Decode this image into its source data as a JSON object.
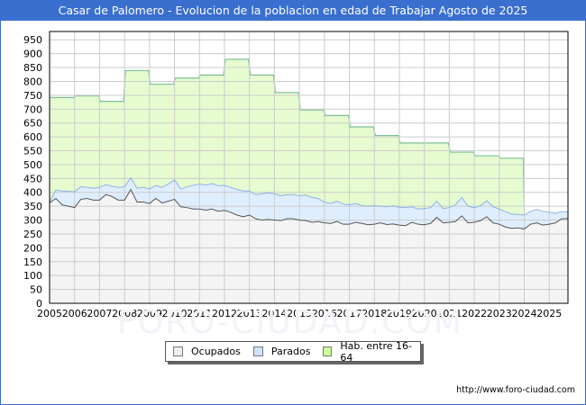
{
  "title": "Casar de Palomero - Evolucion de la poblacion en edad de Trabajar Agosto de 2025",
  "source_url": "http://www.foro-ciudad.com",
  "watermark": "FORO-CIUDAD.COM",
  "colors": {
    "title_bg": "#3a6fd0",
    "hab_fill": "#e6fbd0",
    "hab_line": "#7bbf96",
    "parados_fill": "#dfeeff",
    "parados_line": "#8fb2e6",
    "ocupados_fill": "#f4f4f4",
    "ocupados_line": "#555555",
    "grid": "#cccccc"
  },
  "legend": [
    {
      "label": "Ocupados",
      "color": "#eeeeee"
    },
    {
      "label": "Parados",
      "color": "#cce4ff"
    },
    {
      "label": "Hab. entre 16-64",
      "color": "#ccff99"
    }
  ],
  "chart_data": {
    "type": "area",
    "title": "Casar de Palomero - Evolucion de la poblacion en edad de Trabajar Agosto de 2025",
    "xlabel": "",
    "ylabel": "",
    "ylim": [
      0,
      950
    ],
    "yticks": [
      0,
      50,
      100,
      150,
      200,
      250,
      300,
      350,
      400,
      450,
      500,
      550,
      600,
      650,
      700,
      750,
      800,
      850,
      900,
      950
    ],
    "xticks": [
      "2005",
      "2006",
      "2007",
      "2008",
      "2009",
      "2010",
      "2011",
      "2012",
      "2013",
      "2014",
      "2015",
      "2016",
      "2017",
      "2018",
      "2019",
      "2020",
      "2021",
      "2022",
      "2023",
      "2024",
      "2025"
    ],
    "grid": true,
    "legend_position": "bottom",
    "series": [
      {
        "name": "Hab. entre 16-64",
        "x": [
          2005,
          2006,
          2007,
          2008,
          2009,
          2010,
          2011,
          2012,
          2013,
          2014,
          2015,
          2016,
          2017,
          2018,
          2019,
          2020,
          2021,
          2022,
          2023
        ],
        "values": [
          742,
          748,
          728,
          839,
          790,
          812,
          823,
          880,
          823,
          760,
          697,
          677,
          636,
          605,
          578,
          578,
          545,
          532,
          523
        ]
      },
      {
        "name": "Parados",
        "note": "values are Ocupados+Parados stacked top, quarterly",
        "x": [
          2005.0,
          2005.25,
          2005.5,
          2005.75,
          2006.0,
          2006.25,
          2006.5,
          2006.75,
          2007.0,
          2007.25,
          2007.5,
          2007.75,
          2008.0,
          2008.25,
          2008.5,
          2008.75,
          2009.0,
          2009.25,
          2009.5,
          2009.75,
          2010.0,
          2010.25,
          2010.5,
          2010.75,
          2011.0,
          2011.25,
          2011.5,
          2011.75,
          2012.0,
          2012.25,
          2012.5,
          2012.75,
          2013.0,
          2013.25,
          2013.5,
          2013.75,
          2014.0,
          2014.25,
          2014.5,
          2014.75,
          2015.0,
          2015.25,
          2015.5,
          2015.75,
          2016.0,
          2016.25,
          2016.5,
          2016.75,
          2017.0,
          2017.25,
          2017.5,
          2017.75,
          2018.0,
          2018.25,
          2018.5,
          2018.75,
          2019.0,
          2019.25,
          2019.5,
          2019.75,
          2020.0,
          2020.25,
          2020.5,
          2020.75,
          2021.0,
          2021.25,
          2021.5,
          2021.75,
          2022.0,
          2022.25,
          2022.5,
          2022.75,
          2023.0,
          2023.25,
          2023.5,
          2023.75,
          2024.0,
          2024.25,
          2024.5,
          2024.75,
          2025.0,
          2025.25,
          2025.5
        ],
        "values": [
          365,
          408,
          405,
          404,
          402,
          420,
          418,
          415,
          418,
          428,
          422,
          418,
          420,
          452,
          415,
          418,
          412,
          425,
          418,
          430,
          445,
          412,
          420,
          425,
          430,
          426,
          432,
          424,
          425,
          418,
          410,
          405,
          405,
          392,
          395,
          398,
          395,
          388,
          392,
          392,
          388,
          390,
          382,
          378,
          365,
          360,
          368,
          358,
          355,
          360,
          352,
          350,
          352,
          350,
          348,
          352,
          346,
          345,
          348,
          340,
          342,
          345,
          368,
          342,
          345,
          355,
          382,
          350,
          345,
          352,
          370,
          348,
          340,
          330,
          322,
          320,
          318,
          332,
          338,
          332,
          328,
          325,
          330
        ]
      },
      {
        "name": "Ocupados",
        "x": [
          2005.0,
          2005.25,
          2005.5,
          2005.75,
          2006.0,
          2006.25,
          2006.5,
          2006.75,
          2007.0,
          2007.25,
          2007.5,
          2007.75,
          2008.0,
          2008.25,
          2008.5,
          2008.75,
          2009.0,
          2009.25,
          2009.5,
          2009.75,
          2010.0,
          2010.25,
          2010.5,
          2010.75,
          2011.0,
          2011.25,
          2011.5,
          2011.75,
          2012.0,
          2012.25,
          2012.5,
          2012.75,
          2013.0,
          2013.25,
          2013.5,
          2013.75,
          2014.0,
          2014.25,
          2014.5,
          2014.75,
          2015.0,
          2015.25,
          2015.5,
          2015.75,
          2016.0,
          2016.25,
          2016.5,
          2016.75,
          2017.0,
          2017.25,
          2017.5,
          2017.75,
          2018.0,
          2018.25,
          2018.5,
          2018.75,
          2019.0,
          2019.25,
          2019.5,
          2019.75,
          2020.0,
          2020.25,
          2020.5,
          2020.75,
          2021.0,
          2021.25,
          2021.5,
          2021.75,
          2022.0,
          2022.25,
          2022.5,
          2022.75,
          2023.0,
          2023.25,
          2023.5,
          2023.75,
          2024.0,
          2024.25,
          2024.5,
          2024.75,
          2025.0,
          2025.25,
          2025.5
        ],
        "values": [
          362,
          378,
          355,
          350,
          345,
          375,
          378,
          372,
          372,
          392,
          385,
          372,
          372,
          410,
          365,
          365,
          360,
          378,
          362,
          368,
          375,
          348,
          345,
          340,
          340,
          336,
          340,
          332,
          335,
          328,
          318,
          312,
          318,
          305,
          300,
          302,
          300,
          298,
          305,
          305,
          300,
          298,
          292,
          295,
          290,
          288,
          295,
          285,
          285,
          292,
          288,
          283,
          285,
          290,
          284,
          286,
          282,
          280,
          292,
          285,
          283,
          288,
          310,
          290,
          292,
          295,
          315,
          290,
          292,
          298,
          312,
          290,
          285,
          275,
          270,
          272,
          268,
          285,
          290,
          282,
          285,
          290,
          305
        ]
      }
    ]
  }
}
